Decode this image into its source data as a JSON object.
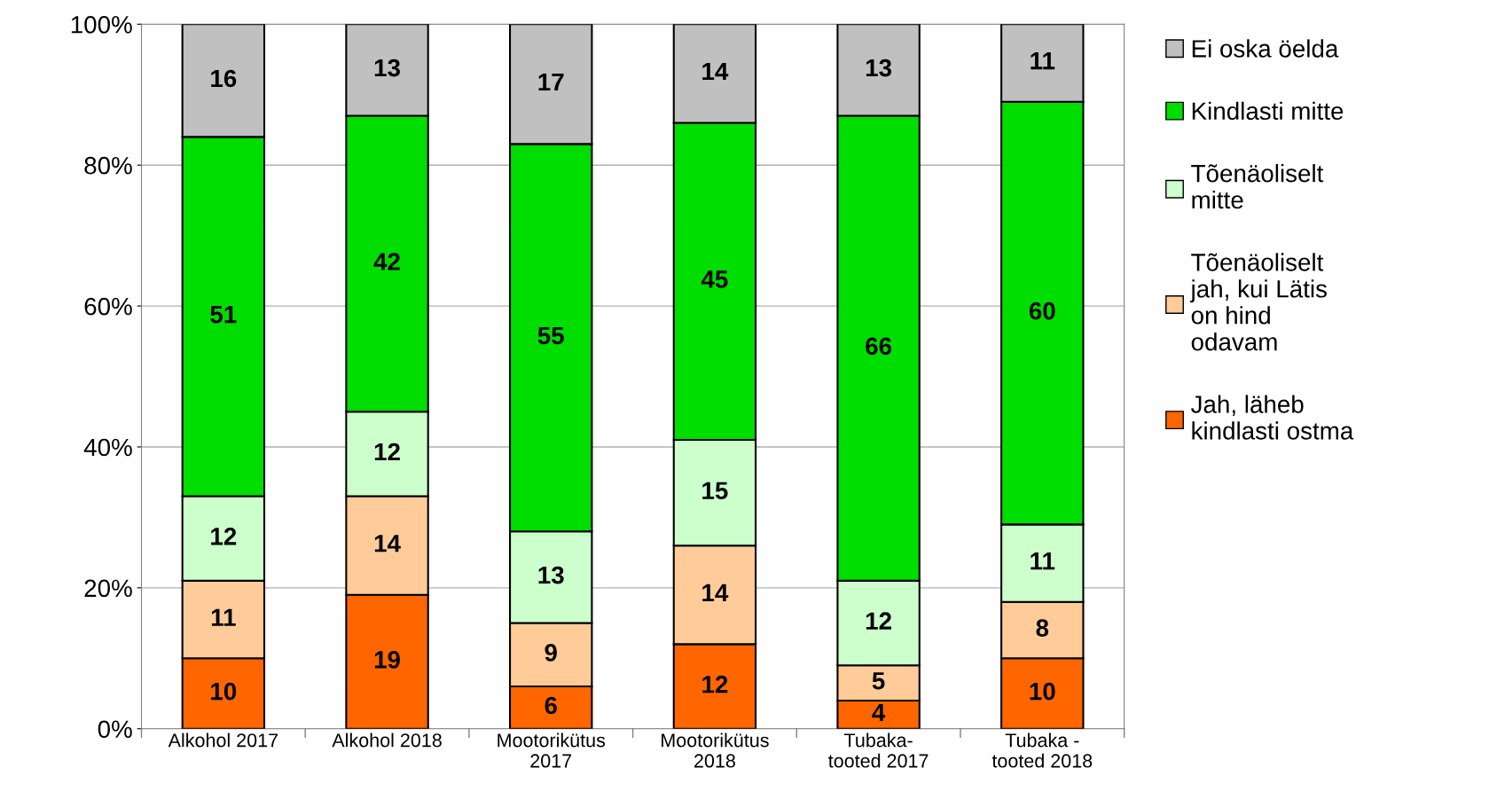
{
  "chart_data": {
    "type": "bar",
    "stacked": true,
    "categories": [
      "Alkohol 2017",
      "Alkohol 2018",
      "Mootorikütus\n2017",
      "Mootorikütus\n2018",
      "Tubaka-\ntooted 2017",
      "Tubaka -\ntooted 2018"
    ],
    "series": [
      {
        "name": "Jah, läheb\nkindlasti ostma",
        "color": "#ff6600",
        "values": [
          10,
          19,
          6,
          12,
          4,
          10
        ]
      },
      {
        "name": "Tõenäoliselt\njah, kui Lätis\non hind\nodavam",
        "color": "#ffcc99",
        "values": [
          11,
          14,
          9,
          14,
          5,
          8
        ]
      },
      {
        "name": "Tõenäoliselt\nmitte",
        "color": "#ccffcc",
        "values": [
          12,
          12,
          13,
          15,
          12,
          11
        ]
      },
      {
        "name": "Kindlasti mitte",
        "color": "#00dd00",
        "values": [
          51,
          42,
          55,
          45,
          66,
          60
        ]
      },
      {
        "name": "Ei oska öelda",
        "color": "#c0c0c0",
        "values": [
          16,
          13,
          17,
          14,
          13,
          11
        ]
      }
    ],
    "ylim": [
      0,
      100
    ],
    "yticks": [
      {
        "value": 0,
        "label": "0%"
      },
      {
        "value": 20,
        "label": "20%"
      },
      {
        "value": 40,
        "label": "40%"
      },
      {
        "value": 60,
        "label": "60%"
      },
      {
        "value": 80,
        "label": "80%"
      },
      {
        "value": 100,
        "label": "100%"
      }
    ],
    "grid": "y",
    "legend": "right",
    "data_labels": true
  }
}
